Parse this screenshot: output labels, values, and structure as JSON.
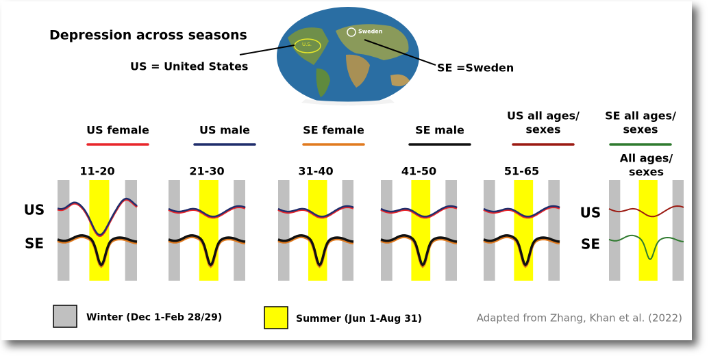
{
  "title": "Depression across seasons",
  "map": {
    "us_label": "U.S.",
    "se_label": "Sweden"
  },
  "callouts": {
    "us": "US = United States",
    "se": "SE =Sweden"
  },
  "series_legend": [
    {
      "lines": [
        "US female"
      ],
      "color": "#e8262b"
    },
    {
      "lines": [
        "US male"
      ],
      "color": "#1f2d6b"
    },
    {
      "lines": [
        "SE female"
      ],
      "color": "#e07a1f"
    },
    {
      "lines": [
        "SE male"
      ],
      "color": "#111111"
    },
    {
      "lines": [
        "US all ages/",
        "sexes"
      ],
      "color": "#9b1a12"
    },
    {
      "lines": [
        "SE all ages/",
        "sexes"
      ],
      "color": "#2f7a2f"
    }
  ],
  "panels": [
    {
      "lines": [
        "11-20"
      ]
    },
    {
      "lines": [
        "21-30"
      ]
    },
    {
      "lines": [
        "31-40"
      ]
    },
    {
      "lines": [
        "41-50"
      ]
    },
    {
      "lines": [
        "51-65"
      ]
    },
    {
      "lines": [
        "All ages/",
        "sexes"
      ]
    }
  ],
  "row_labels": [
    "US",
    "SE"
  ],
  "key": [
    {
      "label": "Winter (Dec 1-Feb 28/29)",
      "color": "#c0c0c0"
    },
    {
      "label": "Summer (Jun 1-Aug 31)",
      "color": "#ffff00"
    }
  ],
  "credit": "Adapted from Zhang, Khan et al. (2022)"
}
